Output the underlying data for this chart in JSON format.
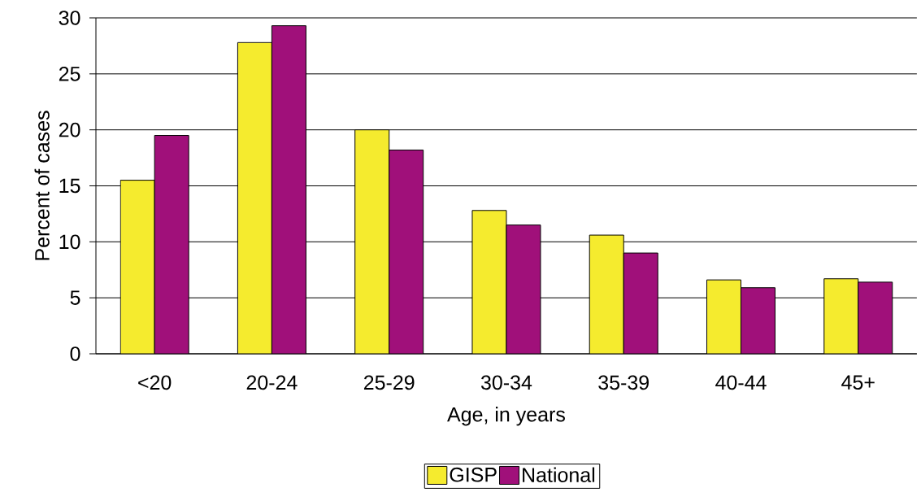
{
  "chart_data": {
    "type": "bar",
    "xlabel": "Age, in years",
    "ylabel": "Percent of cases",
    "categories": [
      "<20",
      "20-24",
      "25-29",
      "30-34",
      "35-39",
      "40-44",
      "45+"
    ],
    "series": [
      {
        "name": "GISP",
        "color": "#f5eb2e",
        "values": [
          15.5,
          27.8,
          20.0,
          12.8,
          10.6,
          6.6,
          6.7
        ]
      },
      {
        "name": "National",
        "color": "#a0107a",
        "values": [
          19.5,
          29.3,
          18.2,
          11.5,
          9.0,
          5.9,
          6.4
        ]
      }
    ],
    "ylim": [
      0,
      30
    ],
    "yticks": [
      0,
      5,
      10,
      15,
      20,
      25,
      30
    ],
    "grid": "y",
    "legend": "bottom"
  }
}
